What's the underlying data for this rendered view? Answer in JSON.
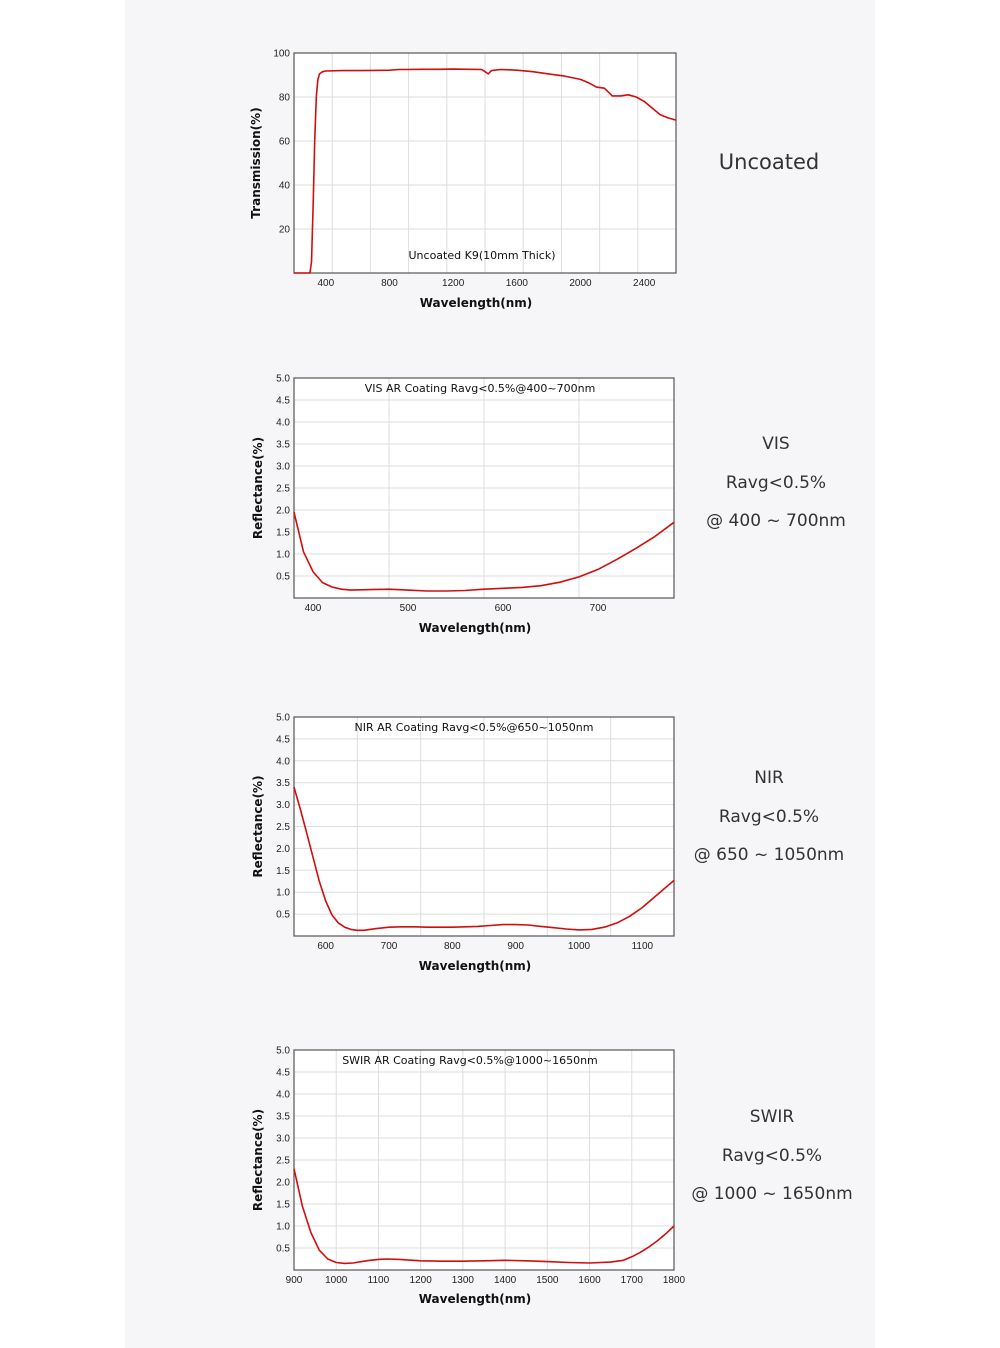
{
  "colors": {
    "curve": "#d10e0e",
    "panel_background": "#f6f6f8",
    "grid": "#dddddd",
    "frame": "#555555"
  },
  "chart_data": [
    {
      "type": "line",
      "title": "Uncoated K9(10mm Thick)",
      "xlabel": "Wavelength(nm)",
      "ylabel": "Transmission(%)",
      "xlim": [
        200,
        2600
      ],
      "ylim": [
        0,
        100
      ],
      "xticks": [
        400,
        800,
        1200,
        1600,
        2000,
        2400
      ],
      "yticks": [
        20,
        40,
        60,
        80,
        100
      ],
      "grid": true,
      "series": [
        {
          "x": [
            200,
            280,
            290,
            300,
            310,
            320,
            330,
            340,
            350,
            360,
            380,
            400,
            500,
            600,
            700,
            800,
            860,
            900,
            1000,
            1100,
            1200,
            1300,
            1380,
            1400,
            1420,
            1440,
            1500,
            1600,
            1700,
            1800,
            1900,
            2000,
            2050,
            2100,
            2150,
            2200,
            2250,
            2300,
            2350,
            2400,
            2450,
            2500,
            2550,
            2600
          ],
          "y": [
            0,
            0,
            0,
            0,
            5,
            30,
            60,
            80,
            88,
            90.5,
            91.5,
            91.8,
            92,
            92,
            92.1,
            92.2,
            92.5,
            92.5,
            92.6,
            92.6,
            92.7,
            92.6,
            92.5,
            91.5,
            90.5,
            92,
            92.5,
            92.2,
            91.5,
            90.5,
            89.5,
            88,
            86.5,
            84.5,
            84,
            80.5,
            80.5,
            81,
            80,
            78,
            75,
            72,
            70.5,
            69.5
          ]
        }
      ]
    },
    {
      "type": "line",
      "title": "VIS AR Coating Ravg<0.5%@400~700nm",
      "xlabel": "Wavelength(nm)",
      "ylabel": "Reflectance(%)",
      "xlim": [
        380,
        780
      ],
      "ylim": [
        0,
        5.0
      ],
      "xticks": [
        400,
        500,
        600,
        700
      ],
      "yticks": [
        "0.5",
        "1.0",
        "1.5",
        "2.0",
        "2.5",
        "3.0",
        "3.5",
        "4.0",
        "4.5",
        "5.0"
      ],
      "grid": true,
      "series": [
        {
          "x": [
            380,
            390,
            400,
            410,
            420,
            430,
            440,
            460,
            480,
            500,
            520,
            540,
            560,
            580,
            600,
            620,
            640,
            660,
            680,
            700,
            720,
            740,
            760,
            780
          ],
          "y": [
            1.95,
            1.05,
            0.6,
            0.35,
            0.25,
            0.2,
            0.18,
            0.19,
            0.2,
            0.18,
            0.16,
            0.16,
            0.17,
            0.2,
            0.22,
            0.24,
            0.28,
            0.36,
            0.48,
            0.65,
            0.88,
            1.13,
            1.4,
            1.72
          ]
        }
      ]
    },
    {
      "type": "line",
      "title": "NIR AR Coating Ravg<0.5%@650~1050nm",
      "xlabel": "Wavelength(nm)",
      "ylabel": "Reflectance(%)",
      "xlim": [
        550,
        1150
      ],
      "ylim": [
        0,
        5.0
      ],
      "xticks": [
        600,
        700,
        800,
        900,
        1000,
        1100
      ],
      "yticks": [
        "0.5",
        "1.0",
        "1.5",
        "2.0",
        "2.5",
        "3.0",
        "3.5",
        "4.0",
        "4.5",
        "5.0"
      ],
      "grid": true,
      "series": [
        {
          "x": [
            550,
            560,
            570,
            580,
            590,
            600,
            610,
            620,
            630,
            640,
            650,
            660,
            680,
            700,
            720,
            740,
            760,
            780,
            800,
            820,
            840,
            860,
            880,
            900,
            920,
            940,
            960,
            980,
            1000,
            1020,
            1040,
            1060,
            1080,
            1100,
            1120,
            1150
          ],
          "y": [
            3.4,
            2.9,
            2.35,
            1.8,
            1.25,
            0.8,
            0.48,
            0.3,
            0.2,
            0.15,
            0.13,
            0.13,
            0.17,
            0.2,
            0.21,
            0.21,
            0.2,
            0.2,
            0.2,
            0.21,
            0.22,
            0.24,
            0.26,
            0.26,
            0.25,
            0.22,
            0.19,
            0.16,
            0.14,
            0.15,
            0.2,
            0.3,
            0.45,
            0.65,
            0.9,
            1.27
          ]
        }
      ]
    },
    {
      "type": "line",
      "title": "SWIR AR Coating Ravg<0.5%@1000~1650nm",
      "xlabel": "Wavelength(nm)",
      "ylabel": "Reflectance(%)",
      "xlim": [
        900,
        1800
      ],
      "ylim": [
        0,
        5.0
      ],
      "xticks": [
        900,
        1000,
        1100,
        1200,
        1300,
        1400,
        1500,
        1600,
        1700,
        1800
      ],
      "yticks": [
        "0.5",
        "1.0",
        "1.5",
        "2.0",
        "2.5",
        "3.0",
        "3.5",
        "4.0",
        "4.5",
        "5.0"
      ],
      "grid": true,
      "series": [
        {
          "x": [
            900,
            920,
            940,
            960,
            980,
            1000,
            1020,
            1040,
            1060,
            1080,
            1100,
            1120,
            1150,
            1200,
            1250,
            1300,
            1350,
            1400,
            1450,
            1500,
            1550,
            1600,
            1650,
            1680,
            1700,
            1720,
            1740,
            1760,
            1780,
            1800
          ],
          "y": [
            2.3,
            1.45,
            0.85,
            0.45,
            0.25,
            0.17,
            0.15,
            0.16,
            0.19,
            0.22,
            0.24,
            0.25,
            0.24,
            0.21,
            0.2,
            0.2,
            0.21,
            0.22,
            0.21,
            0.19,
            0.17,
            0.16,
            0.18,
            0.22,
            0.3,
            0.4,
            0.52,
            0.66,
            0.82,
            1.0
          ]
        }
      ]
    }
  ],
  "side_labels": [
    {
      "lines": [
        "Uncoated"
      ]
    },
    {
      "lines": [
        "VIS",
        "Ravg<0.5%",
        "@ 400 ~ 700nm"
      ]
    },
    {
      "lines": [
        "NIR",
        "Ravg<0.5%",
        "@ 650 ~ 1050nm"
      ]
    },
    {
      "lines": [
        "SWIR",
        "Ravg<0.5%",
        "@ 1000 ~ 1650nm"
      ]
    }
  ]
}
